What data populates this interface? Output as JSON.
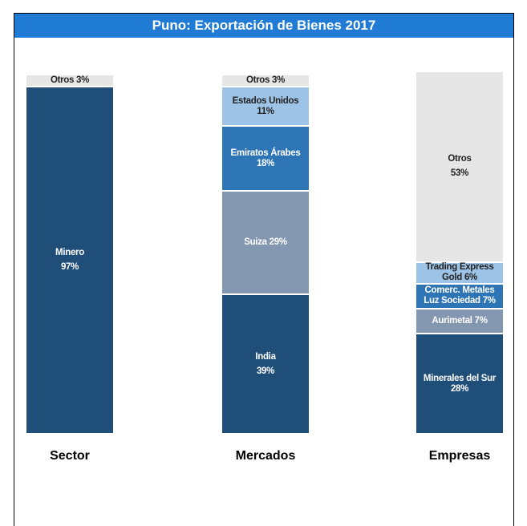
{
  "chart_data": {
    "type": "stacked_bar_100",
    "title": "Puno: Exportación de Bienes 2017",
    "ylim": [
      0,
      100
    ],
    "bars": [
      {
        "category": "Sector",
        "segments": [
          "Minero",
          "Otros"
        ],
        "values": [
          97,
          3
        ],
        "value_labels": [
          "97%",
          "3%"
        ],
        "colors": [
          "#1f4e79",
          "#e7e6e6"
        ]
      },
      {
        "category": "Mercados",
        "segments": [
          "India",
          "Suiza",
          "Emiratos Árabes",
          "Estados Unidos",
          "Otros"
        ],
        "values": [
          39,
          29,
          18,
          11,
          3
        ],
        "value_labels": [
          "39%",
          "29%",
          "18%",
          "11%",
          "3%"
        ],
        "colors": [
          "#1f4e79",
          "#8497b0",
          "#2e75b6",
          "#9dc3e6",
          "#e7e6e6"
        ]
      },
      {
        "category": "Empresas",
        "segments": [
          "Minerales del Sur",
          "Aurimetal",
          "Comerc. Metales Luz Sociedad",
          "Trading Express Gold",
          "Otros"
        ],
        "values": [
          28,
          7,
          7,
          6,
          53
        ],
        "value_labels": [
          "28%",
          "7%",
          "7%",
          "6%",
          "53%"
        ],
        "colors": [
          "#1f4e79",
          "#8497b0",
          "#2e75b6",
          "#9dc3e6",
          "#e7e6e6"
        ]
      }
    ]
  }
}
